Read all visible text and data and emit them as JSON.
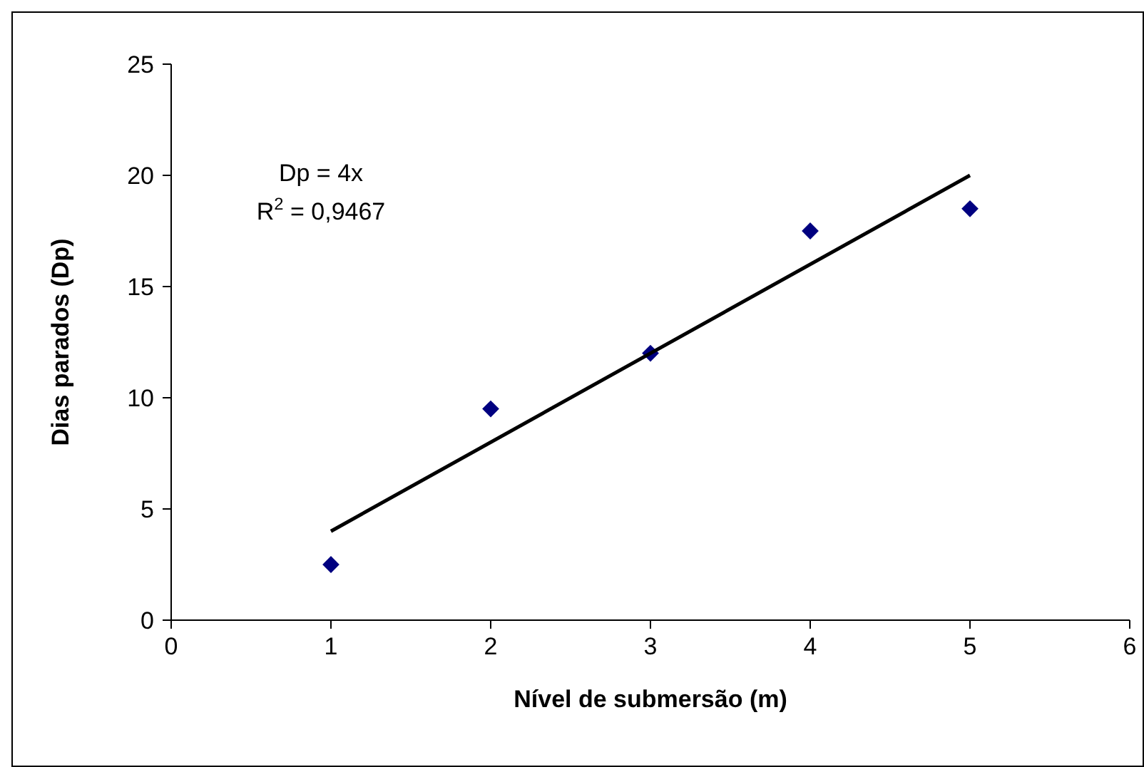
{
  "chart_data": {
    "type": "scatter",
    "xlabel": "Nível de submersão (m)",
    "ylabel": "Dias parados (Dp)",
    "xlim": [
      0,
      6
    ],
    "xticks": [
      0,
      1,
      2,
      3,
      4,
      5,
      6
    ],
    "ylim": [
      0,
      25
    ],
    "yticks": [
      0,
      5,
      10,
      15,
      20,
      25
    ],
    "grid": false,
    "marker": "diamond",
    "annotations": [
      "Dp = 4x",
      "R$^{2}$ = 0,9467"
    ],
    "series": [
      {
        "color": "#000080",
        "x": [
          1,
          2,
          3,
          4,
          5
        ],
        "values": [
          2.5,
          9.5,
          12,
          17.5,
          18.5
        ]
      },
      {
        "type": "line",
        "color": "#000000",
        "marker": "none",
        "line_style": "solid",
        "x": [
          1,
          5
        ],
        "values": [
          4,
          20
        ]
      }
    ]
  }
}
